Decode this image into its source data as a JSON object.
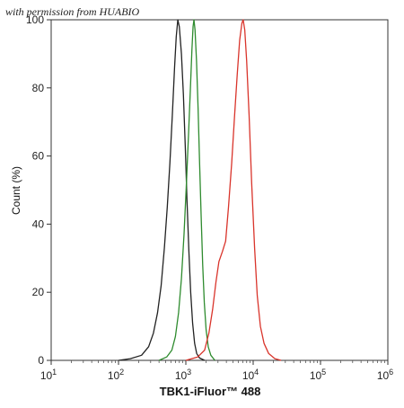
{
  "watermark": "with permission from HUABIO",
  "chart_data": {
    "type": "line",
    "title": "",
    "xlabel": "TBK1-iFluor™ 488",
    "ylabel": "Count (%)",
    "x_scale": "log",
    "xlim": [
      10,
      1000000
    ],
    "ylim": [
      0,
      100
    ],
    "x_ticks": [
      {
        "value": 10,
        "base": "10",
        "exp": "1"
      },
      {
        "value": 100,
        "base": "10",
        "exp": "2"
      },
      {
        "value": 1000,
        "base": "10",
        "exp": "3"
      },
      {
        "value": 10000,
        "base": "10",
        "exp": "4"
      },
      {
        "value": 100000,
        "base": "10",
        "exp": "5"
      },
      {
        "value": 1000000,
        "base": "10",
        "exp": "6"
      }
    ],
    "y_ticks": [
      "0",
      "20",
      "40",
      "60",
      "80",
      "100"
    ],
    "grid": false,
    "legend": "none",
    "series": [
      {
        "color": "#222222",
        "points": [
          [
            100,
            0
          ],
          [
            150,
            0.5
          ],
          [
            220,
            1.5
          ],
          [
            280,
            4
          ],
          [
            330,
            8
          ],
          [
            380,
            14
          ],
          [
            430,
            22
          ],
          [
            480,
            33
          ],
          [
            530,
            45
          ],
          [
            580,
            58
          ],
          [
            630,
            72
          ],
          [
            680,
            86
          ],
          [
            720,
            95
          ],
          [
            760,
            100
          ],
          [
            800,
            98
          ],
          [
            860,
            90
          ],
          [
            920,
            78
          ],
          [
            980,
            63
          ],
          [
            1040,
            47
          ],
          [
            1110,
            32
          ],
          [
            1180,
            20
          ],
          [
            1260,
            11
          ],
          [
            1350,
            5
          ],
          [
            1450,
            2
          ],
          [
            1600,
            0.7
          ],
          [
            1900,
            0
          ]
        ]
      },
      {
        "color": "#2e8b2e",
        "points": [
          [
            400,
            0
          ],
          [
            520,
            1
          ],
          [
            620,
            3
          ],
          [
            700,
            7
          ],
          [
            780,
            14
          ],
          [
            860,
            24
          ],
          [
            940,
            37
          ],
          [
            1020,
            52
          ],
          [
            1100,
            67
          ],
          [
            1170,
            80
          ],
          [
            1230,
            91
          ],
          [
            1280,
            98
          ],
          [
            1320,
            100
          ],
          [
            1370,
            97
          ],
          [
            1440,
            88
          ],
          [
            1520,
            74
          ],
          [
            1600,
            58
          ],
          [
            1690,
            42
          ],
          [
            1780,
            28
          ],
          [
            1880,
            17
          ],
          [
            2000,
            9
          ],
          [
            2150,
            4
          ],
          [
            2350,
            1.5
          ],
          [
            2700,
            0
          ]
        ]
      },
      {
        "color": "#d9342b",
        "points": [
          [
            1000,
            0
          ],
          [
            1500,
            1
          ],
          [
            1900,
            3
          ],
          [
            2200,
            8
          ],
          [
            2500,
            15
          ],
          [
            2800,
            23
          ],
          [
            3100,
            29
          ],
          [
            3500,
            32
          ],
          [
            3900,
            35
          ],
          [
            4300,
            45
          ],
          [
            4800,
            58
          ],
          [
            5300,
            72
          ],
          [
            5800,
            84
          ],
          [
            6300,
            94
          ],
          [
            6800,
            99
          ],
          [
            7100,
            100
          ],
          [
            7500,
            97
          ],
          [
            8000,
            88
          ],
          [
            8700,
            72
          ],
          [
            9500,
            52
          ],
          [
            10500,
            33
          ],
          [
            11500,
            19
          ],
          [
            12800,
            10
          ],
          [
            14500,
            5
          ],
          [
            17000,
            2
          ],
          [
            21000,
            0.5
          ],
          [
            26000,
            0
          ]
        ]
      }
    ]
  }
}
